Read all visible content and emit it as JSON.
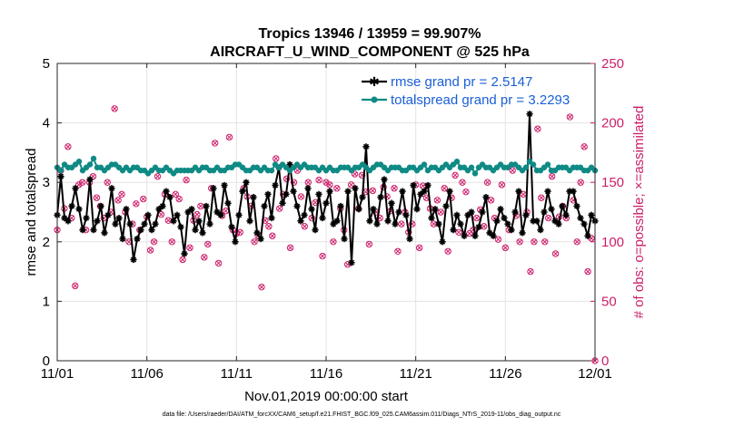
{
  "chart_data": {
    "type": "line",
    "title_line1": "Tropics 13946 / 13959 = 99.907%",
    "title_line2": "AIRCRAFT_U_WIND_COMPONENT @ 525 hPa",
    "ylabel_left": "rmse and totalspread",
    "ylabel_right": "# of obs: o=possible; ×=assimilated",
    "xlabel": "Nov.01,2019 00:00:00 start",
    "footnote": "data file: /Users/raeder/DAI/ATM_forcXX/CAM6_setup/f.e21.FHIST_BGC.f09_025.CAM6assim.011/Diags_NTrS_2019-11/obs_diag_output.nc",
    "x_range_days": [
      0,
      30
    ],
    "ylim_left": [
      0,
      5
    ],
    "ylim_right": [
      0,
      250
    ],
    "x_ticks": [
      {
        "day": 0,
        "label": "11/01"
      },
      {
        "day": 5,
        "label": "11/06"
      },
      {
        "day": 10,
        "label": "11/11"
      },
      {
        "day": 15,
        "label": "11/16"
      },
      {
        "day": 20,
        "label": "11/21"
      },
      {
        "day": 25,
        "label": "11/26"
      },
      {
        "day": 30,
        "label": "12/01"
      }
    ],
    "y_ticks_left": [
      "0",
      "1",
      "2",
      "3",
      "4",
      "5"
    ],
    "y_ticks_right": [
      "0",
      "50",
      "100",
      "150",
      "200",
      "250"
    ],
    "series": [
      {
        "name": "rmse grand pr = 2.5147",
        "color": "#000000",
        "marker": "star",
        "values": [
          2.45,
          3.1,
          2.4,
          2.35,
          2.6,
          2.9,
          2.55,
          2.2,
          2.4,
          3.05,
          2.2,
          2.35,
          2.6,
          2.15,
          2.45,
          2.9,
          2.3,
          2.4,
          2.05,
          2.55,
          2.3,
          1.7,
          2.05,
          2.2,
          2.3,
          2.45,
          2.2,
          2.3,
          2.55,
          2.6,
          2.85,
          2.75,
          2.35,
          2.45,
          2.25,
          1.8,
          2.5,
          2.55,
          2.2,
          2.35,
          2.15,
          2.6,
          2.3,
          2.9,
          2.5,
          2.45,
          2.95,
          2.65,
          2.25,
          2.0,
          2.45,
          2.85,
          3.0,
          2.35,
          2.75,
          2.15,
          2.05,
          2.6,
          2.8,
          2.4,
          2.95,
          3.25,
          2.65,
          2.8,
          3.3,
          2.85,
          2.6,
          2.35,
          2.45,
          2.9,
          2.55,
          2.2,
          2.8,
          2.4,
          2.65,
          2.85,
          2.3,
          2.35,
          2.6,
          2.05,
          2.85,
          1.65,
          2.9,
          2.55,
          2.75,
          3.6,
          2.35,
          2.55,
          2.3,
          2.75,
          3.05,
          2.35,
          2.65,
          2.3,
          2.5,
          2.85,
          2.45,
          2.05,
          2.95,
          2.55,
          2.8,
          2.85,
          2.95,
          2.4,
          2.55,
          2.3,
          2.0,
          2.6,
          2.85,
          2.2,
          2.45,
          2.3,
          2.1,
          2.45,
          2.5,
          2.1,
          2.25,
          2.5,
          2.75,
          2.15,
          2.1,
          2.35,
          2.55,
          2.4,
          2.3,
          2.2,
          2.5,
          2.85,
          2.15,
          2.45,
          4.15,
          2.35,
          2.35,
          2.2,
          2.5,
          2.85,
          2.55,
          2.35,
          2.3,
          2.6,
          2.45,
          2.85,
          2.85,
          2.6,
          2.4,
          2.3,
          2.1,
          2.45,
          2.35
        ]
      },
      {
        "name": "totalspread grand pr = 3.2293",
        "color": "#0f8a85",
        "marker": "circle",
        "values": [
          3.25,
          3.2,
          3.3,
          3.25,
          3.25,
          3.3,
          3.35,
          3.2,
          3.25,
          3.3,
          3.4,
          3.25,
          3.25,
          3.2,
          3.25,
          3.3,
          3.3,
          3.25,
          3.2,
          3.25,
          3.2,
          3.25,
          3.25,
          3.2,
          3.2,
          3.15,
          3.2,
          3.25,
          3.2,
          3.2,
          3.25,
          3.2,
          3.15,
          3.2,
          3.2,
          3.2,
          3.2,
          3.2,
          3.25,
          3.2,
          3.25,
          3.25,
          3.2,
          3.2,
          3.25,
          3.2,
          3.2,
          3.25,
          3.25,
          3.3,
          3.3,
          3.25,
          3.2,
          3.2,
          3.25,
          3.25,
          3.2,
          3.25,
          3.2,
          3.2,
          3.3,
          3.25,
          3.3,
          3.25,
          3.2,
          3.25,
          3.3,
          3.25,
          3.3,
          3.25,
          3.25,
          3.25,
          3.2,
          3.25,
          3.2,
          3.25,
          3.2,
          3.2,
          3.25,
          3.25,
          3.25,
          3.2,
          3.25,
          3.25,
          3.3,
          3.25,
          3.2,
          3.25,
          3.3,
          3.3,
          3.25,
          3.2,
          3.25,
          3.25,
          3.25,
          3.2,
          3.2,
          3.25,
          3.25,
          3.2,
          3.25,
          3.3,
          3.2,
          3.25,
          3.25,
          3.2,
          3.25,
          3.3,
          3.25,
          3.3,
          3.35,
          3.25,
          3.25,
          3.2,
          3.25,
          3.15,
          3.25,
          3.3,
          3.25,
          3.25,
          3.2,
          3.25,
          3.3,
          3.25,
          3.25,
          3.3,
          3.3,
          3.25,
          3.2,
          3.25,
          3.35,
          3.3,
          3.2,
          3.2,
          3.25,
          3.3,
          3.2,
          3.2,
          3.25,
          3.25,
          3.25,
          3.2,
          3.25,
          3.25,
          3.25,
          3.2,
          3.2,
          3.25,
          3.2
        ]
      }
    ],
    "obs_counts": {
      "name": "# of obs",
      "color": "#cc1f6a",
      "possible": [
        110,
        160,
        128,
        180,
        120,
        63,
        148,
        150,
        110,
        150,
        155,
        137,
        130,
        120,
        150,
        125,
        212,
        135,
        140,
        125,
        100,
        115,
        132,
        110,
        136,
        121,
        93,
        100,
        155,
        123,
        140,
        118,
        100,
        140,
        136,
        85,
        152,
        95,
        118,
        123,
        130,
        87,
        98,
        145,
        183,
        82,
        122,
        126,
        188,
        110,
        107,
        108,
        145,
        138,
        130,
        100,
        105,
        62,
        118,
        113,
        105,
        170,
        128,
        140,
        153,
        95,
        150,
        160,
        138,
        113,
        150,
        120,
        133,
        152,
        88,
        150,
        148,
        100,
        145,
        128,
        110,
        81,
        148,
        157,
        128,
        156,
        142,
        98,
        143,
        125,
        120,
        146,
        138,
        126,
        145,
        92,
        115,
        125,
        108,
        115,
        148,
        95,
        147,
        137,
        128,
        115,
        135,
        125,
        145,
        92,
        137,
        156,
        108,
        150,
        142,
        107,
        110,
        120,
        127,
        113,
        150,
        135,
        120,
        102,
        148,
        95,
        110,
        160,
        122,
        100,
        140,
        125,
        75,
        100,
        195,
        137,
        100,
        120,
        155,
        90,
        121,
        130,
        120,
        205,
        135,
        100,
        150,
        180,
        75,
        103,
        0
      ]
    },
    "legend_location": "top-right"
  }
}
